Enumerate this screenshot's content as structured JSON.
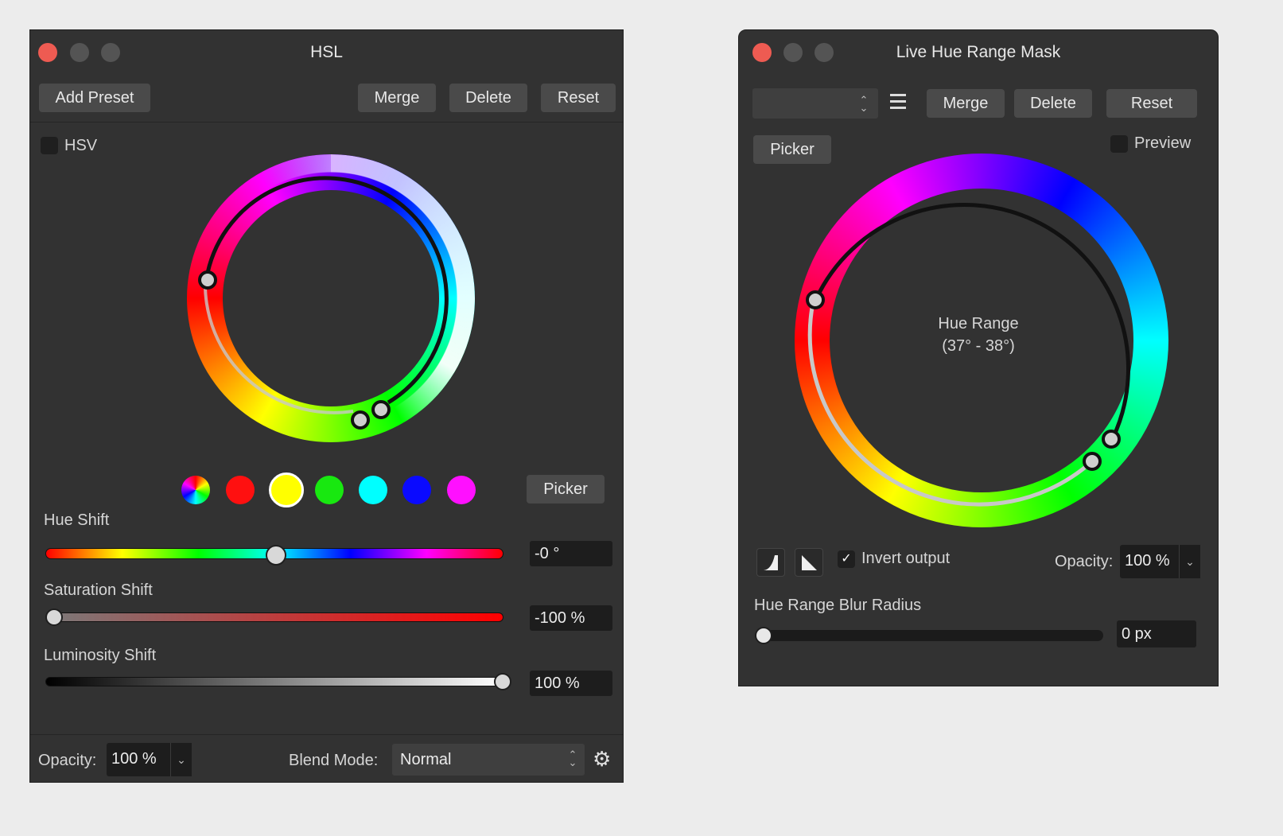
{
  "hsl_panel": {
    "title": "HSL",
    "buttons": {
      "add_preset": "Add Preset",
      "merge": "Merge",
      "delete": "Delete",
      "reset": "Reset",
      "picker": "Picker"
    },
    "hsv_label": "HSV",
    "swatches": [
      {
        "name": "all-colors",
        "color": "multicolor"
      },
      {
        "name": "red",
        "color": "#ff1010"
      },
      {
        "name": "yellow",
        "color": "#ffff00",
        "selected": true
      },
      {
        "name": "green",
        "color": "#18e810"
      },
      {
        "name": "cyan",
        "color": "#00ffff"
      },
      {
        "name": "blue",
        "color": "#0a0aff"
      },
      {
        "name": "magenta",
        "color": "#ff10ff"
      }
    ],
    "hue_shift": {
      "label": "Hue Shift",
      "value": "-0 °",
      "level": 0.5
    },
    "saturation_shift": {
      "label": "Saturation Shift",
      "value": "-100 %",
      "level": 0.0
    },
    "luminosity_shift": {
      "label": "Luminosity Shift",
      "value": "100 %",
      "level": 1.0
    },
    "opacity_label": "Opacity:",
    "opacity_value": "100 %",
    "blend_mode_label": "Blend Mode:",
    "blend_mode_value": "Normal"
  },
  "mask_panel": {
    "title": "Live Hue Range Mask",
    "buttons": {
      "merge": "Merge",
      "delete": "Delete",
      "reset": "Reset",
      "picker": "Picker"
    },
    "preset_value": "",
    "preview_label": "Preview",
    "hue_range_label": "Hue Range",
    "hue_range_value": "(37° - 38°)",
    "invert_output_label": "Invert output",
    "invert_output_checked": true,
    "opacity_label": "Opacity:",
    "opacity_value": "100 %",
    "blur_label": "Hue Range Blur Radius",
    "blur_value": "0 px",
    "blur_level": 0.0
  }
}
